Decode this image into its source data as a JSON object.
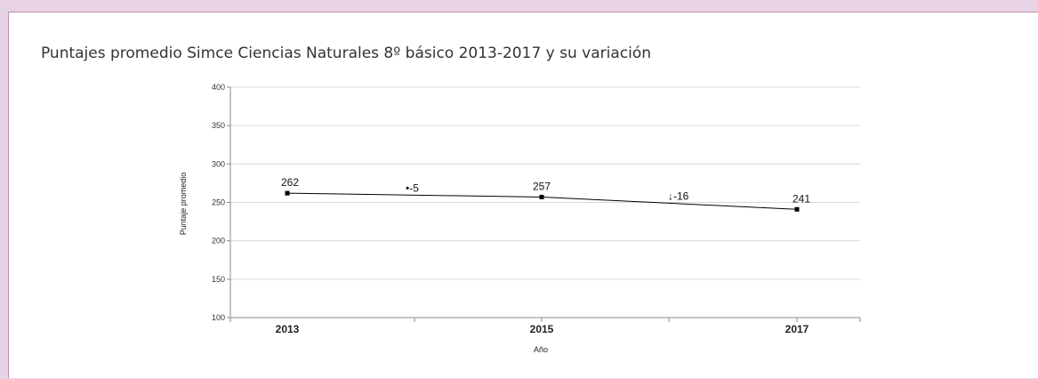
{
  "chart_data": {
    "type": "line",
    "title": "Puntajes promedio Simce Ciencias Naturales 8º básico 2013-2017 y su variación",
    "xlabel": "Año",
    "ylabel": "Puntaje promedio",
    "ylim": [
      100,
      400
    ],
    "yticks": [
      100,
      150,
      200,
      250,
      300,
      350,
      400
    ],
    "grid": true,
    "legend": "none",
    "categories": [
      "2013",
      "2015",
      "2017"
    ],
    "series": [
      {
        "values": [
          262,
          257,
          241
        ],
        "labels": [
          "262",
          "257",
          "241"
        ]
      }
    ],
    "variations": [
      {
        "between": [
          "2013",
          "2015"
        ],
        "value": -5,
        "label": "-5",
        "marker": "•"
      },
      {
        "between": [
          "2015",
          "2017"
        ],
        "value": -16,
        "label": "-16",
        "marker": "↓"
      }
    ],
    "colors": {
      "line": "#000000",
      "grid": "#d9d9d9",
      "axis": "#888888",
      "frame_bg": "#e8d3e5",
      "frame_border": "#b792b2"
    }
  }
}
